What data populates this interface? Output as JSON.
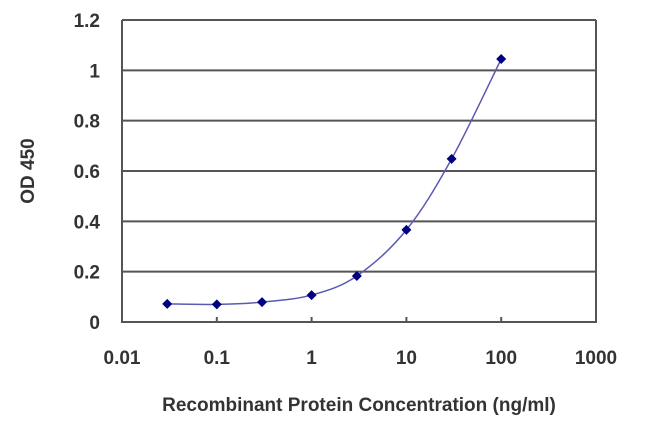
{
  "chart_data": {
    "type": "line",
    "title": "",
    "xlabel": "Recombinant Protein Concentration (ng/ml)",
    "ylabel": "OD 450",
    "xscale": "log",
    "xlim": [
      0.01,
      1000
    ],
    "ylim": [
      0,
      1.2
    ],
    "x_ticks": [
      "0.01",
      "0.1",
      "1",
      "10",
      "100",
      "1000"
    ],
    "y_ticks": [
      "0",
      "0.2",
      "0.4",
      "0.6",
      "0.8",
      "1",
      "1.2"
    ],
    "grid": {
      "horizontal": true,
      "vertical": false
    },
    "legend": null,
    "series": [
      {
        "name": "OD 450",
        "color": "#000080",
        "line_color": "#5a5ab4",
        "marker": "diamond",
        "x": [
          0.03,
          0.1,
          0.3,
          1,
          3,
          10,
          30,
          100
        ],
        "y": [
          0.072,
          0.07,
          0.079,
          0.107,
          0.183,
          0.366,
          0.648,
          1.045
        ]
      }
    ]
  },
  "colors": {
    "grid": "#555555",
    "axis": "#555555",
    "text": "#333333"
  }
}
